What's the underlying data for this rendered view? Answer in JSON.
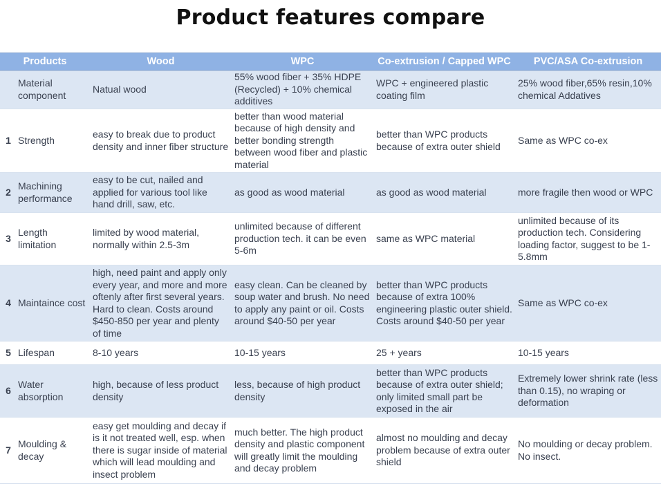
{
  "title": "Product features compare",
  "headers": [
    "Products",
    "Wood",
    "WPC",
    "Co-extrusion / Capped WPC",
    "PVC/ASA Co-extrusion"
  ],
  "rows": [
    {
      "num": "",
      "feature": "Material component",
      "wood": "Natual wood",
      "wpc": "55% wood fiber + 35% HDPE (Recycled) + 10% chemical additives",
      "coex": "WPC + engineered plastic coating film",
      "pvc": "25% wood fiber,65% resin,10% chemical Addatives"
    },
    {
      "num": "1",
      "feature": "Strength",
      "wood": "easy to break due to product density and inner fiber structure",
      "wpc": "better than wood material because of high density and better bonding strength between wood fiber and plastic material",
      "coex": "better than WPC products because of extra outer shield",
      "pvc": "Same as WPC co-ex"
    },
    {
      "num": "2",
      "feature": "Machining performance",
      "wood": "easy to be cut, nailed and applied for various tool like hand drill, saw, etc.",
      "wpc": "as good as wood material",
      "coex": "as good as wood material",
      "pvc": "more fragile then wood or WPC"
    },
    {
      "num": "3",
      "feature": "Length limitation",
      "wood": "limited by wood material, normally within 2.5-3m",
      "wpc": "unlimited because of different production tech. it can be even 5-6m",
      "coex": "same as WPC material",
      "pvc": "unlimited because of its production tech. Considering loading factor, suggest to be 1-5.8mm"
    },
    {
      "num": "4",
      "feature": "Maintaince cost",
      "wood": "high, need paint and apply only every year, and more and more oftenly after first several years. Hard to clean. Costs around $450-850 per year and plenty of time",
      "wpc": "easy clean. Can be cleaned by soup water and brush. No need to apply any paint or oil. Costs around $40-50 per year",
      "coex": "better than WPC products because of extra 100% engineering plastic outer shield. Costs around $40-50 per year",
      "pvc": "Same as WPC co-ex"
    },
    {
      "num": "5",
      "feature": "Lifespan",
      "wood": "8-10 years",
      "wpc": "10-15 years",
      "coex": "25 + years",
      "pvc": "10-15 years"
    },
    {
      "num": "6",
      "feature": "Water absorption",
      "wood": "high, because of less product density",
      "wpc": "less, because of high product density",
      "coex": "better than WPC products because of extra outer shield; only limited small part be exposed in the air",
      "pvc": "Extremely lower shrink rate (less than 0.15), no wraping or deformation"
    },
    {
      "num": "7",
      "feature": "Moulding & decay",
      "wood": "easy get moulding and decay if is it not treated well, esp. when there is sugar inside of material which will lead moulding and insect problem",
      "wpc": "much better. The high product density and plastic component will greatly limit the moulding and decay problem",
      "coex": "almost no moulding and decay problem because of extra outer shield",
      "pvc": "No moulding or decay problem. No insect."
    }
  ]
}
